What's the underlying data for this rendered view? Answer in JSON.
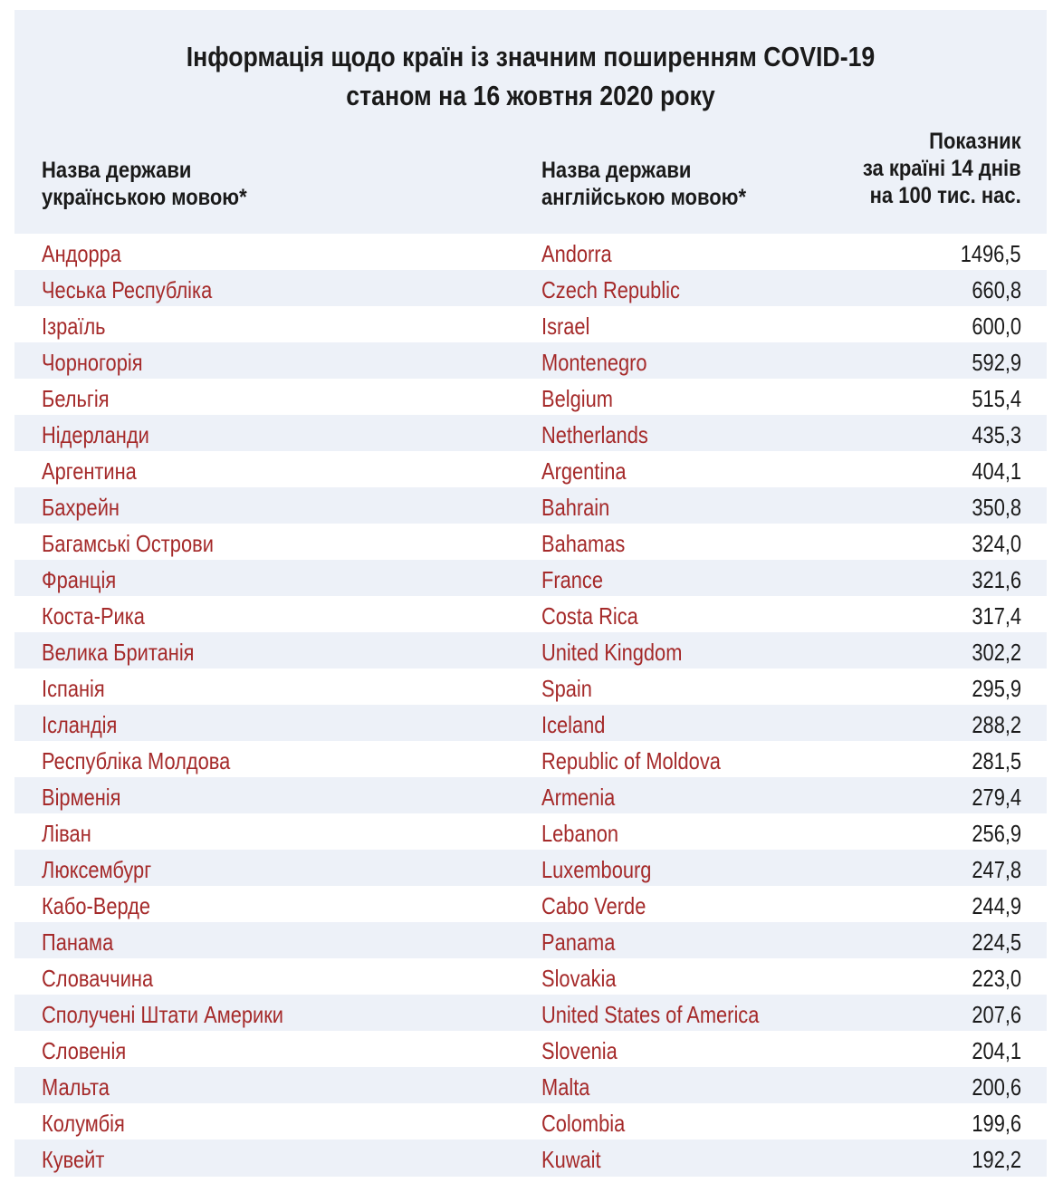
{
  "title": {
    "line1": "Інформація щодо країн із значним поширенням COVID-19",
    "line2": "станом на 16 жовтня 2020 року"
  },
  "headers": {
    "uk": [
      "Назва держави",
      "українською мовою*"
    ],
    "en": [
      "Назва держави",
      "англійською мовою*"
    ],
    "value": [
      "Показник",
      "за країні 14 днів",
      "на 100 тис. нас."
    ]
  },
  "colors": {
    "accent_text": "#a52a2a",
    "panel_bg": "#edf1f8",
    "row_alt_bg": "#ffffff"
  },
  "rows": [
    {
      "uk": "Андорра",
      "en": "Andorra",
      "value": "1496,5"
    },
    {
      "uk": "Чеська Республіка",
      "en": "Czech Republic",
      "value": "660,8"
    },
    {
      "uk": "Ізраїль",
      "en": "Israel",
      "value": "600,0"
    },
    {
      "uk": "Чорногорія",
      "en": "Montenegro",
      "value": "592,9"
    },
    {
      "uk": "Бельгія",
      "en": "Belgium",
      "value": "515,4"
    },
    {
      "uk": "Нідерланди",
      "en": "Netherlands",
      "value": "435,3"
    },
    {
      "uk": "Аргентина",
      "en": "Argentina",
      "value": "404,1"
    },
    {
      "uk": "Бахрейн",
      "en": "Bahrain",
      "value": "350,8"
    },
    {
      "uk": "Багамські Острови",
      "en": "Bahamas",
      "value": "324,0"
    },
    {
      "uk": "Франція",
      "en": "France",
      "value": "321,6"
    },
    {
      "uk": "Коста-Рика",
      "en": "Costa Rica",
      "value": "317,4"
    },
    {
      "uk": "Велика Британія",
      "en": "United Kingdom",
      "value": "302,2"
    },
    {
      "uk": "Іспанія",
      "en": "Spain",
      "value": "295,9"
    },
    {
      "uk": "Ісландія",
      "en": "Iceland",
      "value": "288,2"
    },
    {
      "uk": "Республіка Молдова",
      "en": "Republic of Moldova",
      "value": "281,5"
    },
    {
      "uk": "Вірменія",
      "en": "Armenia",
      "value": "279,4"
    },
    {
      "uk": "Ліван",
      "en": "Lebanon",
      "value": "256,9"
    },
    {
      "uk": "Люксембург",
      "en": "Luxembourg",
      "value": "247,8"
    },
    {
      "uk": "Кабо-Верде",
      "en": "Cabo Verde",
      "value": "244,9"
    },
    {
      "uk": "Панама",
      "en": "Panama",
      "value": "224,5"
    },
    {
      "uk": "Словаччина",
      "en": "Slovakia",
      "value": "223,0"
    },
    {
      "uk": "Сполучені Штати Америки",
      "en": "United States of America",
      "value": "207,6"
    },
    {
      "uk": "Словенія",
      "en": "Slovenia",
      "value": "204,1"
    },
    {
      "uk": "Мальта",
      "en": "Malta",
      "value": "200,6"
    },
    {
      "uk": "Колумбія",
      "en": "Colombia",
      "value": "199,6"
    },
    {
      "uk": "Кувейт",
      "en": "Kuwait",
      "value": "192,2"
    }
  ]
}
